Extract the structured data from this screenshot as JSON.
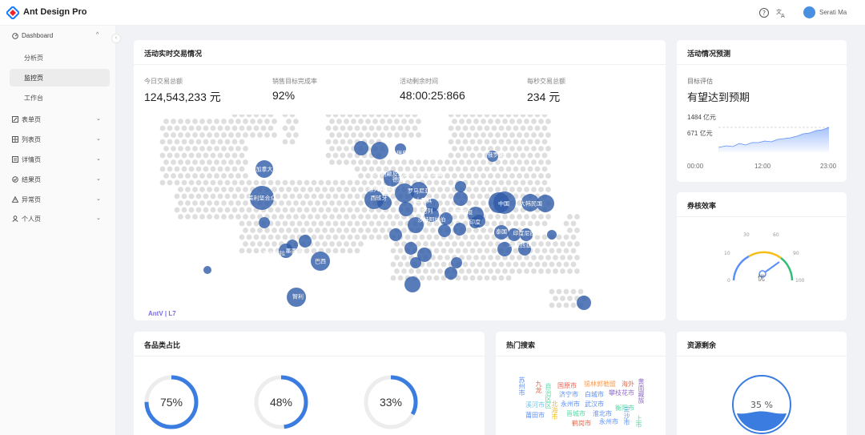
{
  "header": {
    "app_title": "Ant Design Pro",
    "user_name": "Serati Ma",
    "icons": [
      "logo-icon",
      "question-icon",
      "translate-icon",
      "avatar"
    ]
  },
  "sidebar": {
    "collapse_glyph": "‹",
    "items": [
      {
        "label": "Dashboard",
        "icon": "dashboard-icon",
        "arrow": "^"
      },
      {
        "label": "表单页",
        "icon": "form-icon",
        "arrow": "⌄"
      },
      {
        "label": "列表页",
        "icon": "table-icon",
        "arrow": "⌄"
      },
      {
        "label": "详情页",
        "icon": "profile-icon",
        "arrow": "⌄"
      },
      {
        "label": "结果页",
        "icon": "check-circle-icon",
        "arrow": "⌄"
      },
      {
        "label": "异常页",
        "icon": "warning-icon",
        "arrow": "⌄"
      },
      {
        "label": "个人页",
        "icon": "user-icon",
        "arrow": "⌄"
      }
    ],
    "sub_items": [
      {
        "label": "分析页",
        "active": false
      },
      {
        "label": "监控页",
        "active": true
      },
      {
        "label": "工作台",
        "active": false
      }
    ]
  },
  "realtime": {
    "title": "活动实时交易情况",
    "stats": [
      {
        "label": "今日交易总额",
        "value": "124,543,233 元"
      },
      {
        "label": "销售目标完成率",
        "value": "92%"
      },
      {
        "label": "活动剩余时间",
        "value": "48:00:25:866"
      },
      {
        "label": "每秒交易总额",
        "value": "234 元"
      }
    ],
    "map_labels": [
      "加拿大",
      "美利坚合众",
      "墨西哥",
      "委内瑞拉",
      "巴西",
      "智利",
      "瑞典",
      "大不列颠及北爱尔兰联合王国",
      "德国",
      "法国",
      "西班牙",
      "意大利",
      "罗马尼亚",
      "土耳其",
      "以色列",
      "沙特阿拉伯",
      "巴基斯坦",
      "印度",
      "俄罗斯",
      "中国",
      "大韩民国",
      "泰国",
      "印度尼西亚",
      "马来西亚",
      "澳大利亚"
    ],
    "watermark": "AntV | L7"
  },
  "forecast": {
    "title": "活动情况预测",
    "goal_label": "目标评估",
    "goal_value": "有望达到预期",
    "high_label": "1484 亿元",
    "low_label": "671 亿元",
    "x_ticks": [
      "00:00",
      "12:00",
      "23:00"
    ],
    "accent_color": "#5b8ff9"
  },
  "efficiency": {
    "title": "券核效率",
    "gauge_ticks": [
      "0",
      "10",
      "30",
      "60",
      "90",
      "100"
    ],
    "gauge_label": "优",
    "gauge_colors": [
      "#5b8ff9",
      "#f6bd16",
      "#30bf78"
    ]
  },
  "category": {
    "title": "各品类占比",
    "rings": [
      {
        "percent": 75,
        "label": "75%"
      },
      {
        "percent": 48,
        "label": "48%"
      },
      {
        "percent": 33,
        "label": "33%"
      }
    ],
    "ring_color": "#3b7ce0"
  },
  "hot_search": {
    "title": "热门搜索",
    "words": [
      "苏州市",
      "九龙",
      "自治区区",
      "溪河市",
      "莆田市",
      "国原市",
      "济宁市",
      "永州市",
      "晋城市",
      "鹤岗市",
      "锡林郭勒盟",
      "白城市",
      "武汉市",
      "淮北市",
      "永州市",
      "海外",
      "攀枝花市",
      "衡阳市",
      "黄南藏族",
      "上市",
      "三沙市",
      "北海市"
    ]
  },
  "resource": {
    "title": "资源剩余",
    "value_label": "35 %",
    "fill_percent": 35,
    "color": "#3b7ce0"
  }
}
